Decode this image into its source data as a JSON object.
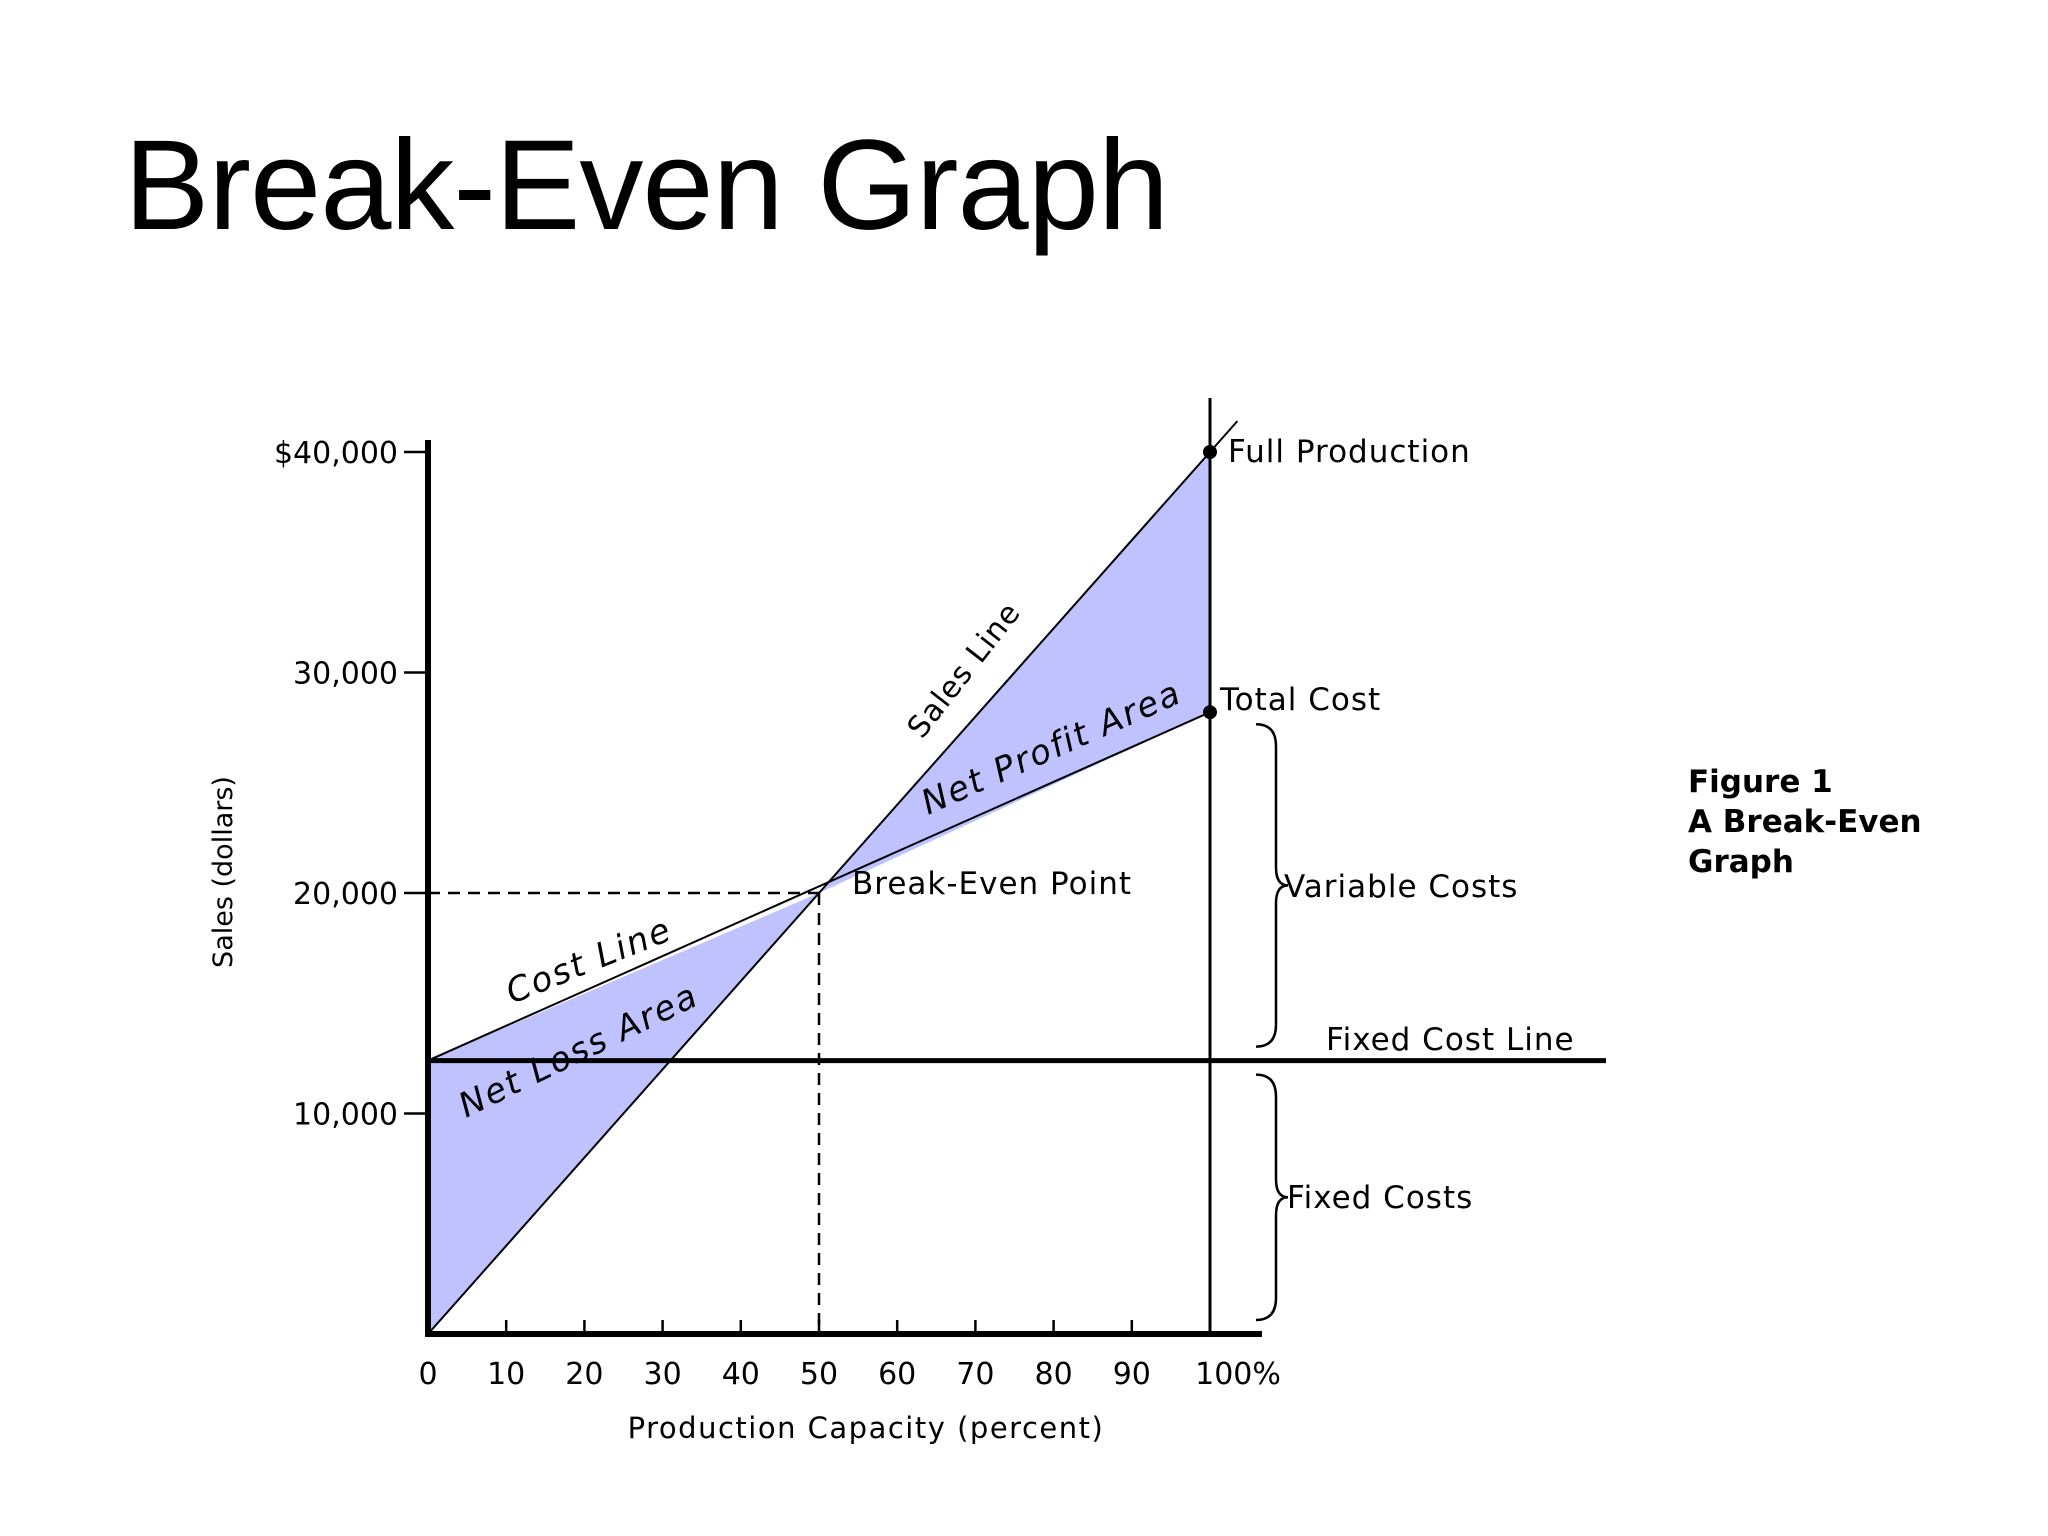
{
  "slide": {
    "title": "Break-Even Graph"
  },
  "caption": {
    "line1": "Figure 1",
    "line2": "A Break-Even",
    "line3": "Graph"
  },
  "colors": {
    "area_fill": "#bfc2ff",
    "line": "#000000"
  },
  "chart_data": {
    "type": "line",
    "xlabel": "Production Capacity (percent)",
    "ylabel": "Sales (dollars)",
    "xlim": [
      0,
      100
    ],
    "ylim": [
      0,
      40000
    ],
    "x_ticks": [
      0,
      10,
      20,
      30,
      40,
      50,
      60,
      70,
      80,
      90,
      100
    ],
    "x_tick_labels": [
      "0",
      "10",
      "20",
      "30",
      "40",
      "50",
      "60",
      "70",
      "80",
      "90",
      "100%"
    ],
    "y_ticks": [
      10000,
      20000,
      30000,
      40000
    ],
    "y_tick_labels": [
      "10,000",
      "20,000",
      "30,000",
      "$40,000"
    ],
    "series": [
      {
        "name": "Sales Line",
        "x": [
          0,
          100
        ],
        "y": [
          0,
          40000
        ]
      },
      {
        "name": "Cost Line",
        "x": [
          0,
          100
        ],
        "y": [
          12400,
          28200
        ]
      },
      {
        "name": "Fixed Cost Line",
        "x": [
          0,
          100
        ],
        "y": [
          12400,
          12400
        ]
      }
    ],
    "break_even_point": {
      "x": 50,
      "y": 20000
    },
    "annotations": {
      "full_production": "Full Production",
      "total_cost": "Total Cost",
      "break_even_point": "Break-Even Point",
      "variable_costs": "Variable Costs",
      "fixed_cost_line": "Fixed Cost Line",
      "fixed_costs": "Fixed Costs",
      "net_profit_area": "Net Profit Area",
      "net_loss_area": "Net Loss Area"
    },
    "grid": false,
    "legend": "none"
  }
}
